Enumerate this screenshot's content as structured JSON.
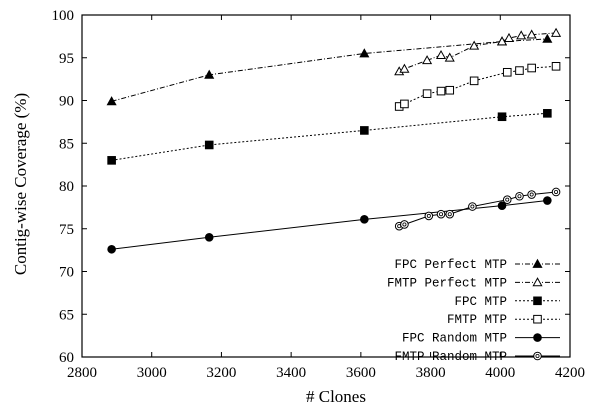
{
  "chart_data": {
    "type": "line",
    "title": "",
    "xlabel": "# Clones",
    "ylabel": "Contig-wise Coverage (%)",
    "xlim": [
      2800,
      4200
    ],
    "ylim": [
      60,
      100
    ],
    "xticks": [
      2800,
      3000,
      3200,
      3400,
      3600,
      3800,
      4000,
      4200
    ],
    "yticks": [
      60,
      65,
      70,
      75,
      80,
      85,
      90,
      95,
      100
    ],
    "grid": false,
    "legend_position": "bottom-right",
    "series": [
      {
        "name": "FPC Perfect MTP",
        "marker": "filled-triangle",
        "line": "dash-dot",
        "x": [
          2885,
          3165,
          3610,
          4005,
          4135
        ],
        "y": [
          89.9,
          93.0,
          95.5,
          96.9,
          97.2
        ]
      },
      {
        "name": "FMTP Perfect MTP",
        "marker": "open-triangle",
        "line": "dash-dot",
        "x": [
          3710,
          3725,
          3790,
          3830,
          3855,
          3925,
          4005,
          4025,
          4060,
          4090,
          4160
        ],
        "y": [
          93.4,
          93.7,
          94.7,
          95.3,
          95.0,
          96.4,
          96.9,
          97.3,
          97.6,
          97.7,
          97.9
        ]
      },
      {
        "name": "FPC MTP",
        "marker": "filled-square",
        "line": "dotted",
        "x": [
          2885,
          3165,
          3610,
          4005,
          4135
        ],
        "y": [
          83.0,
          84.8,
          86.5,
          88.1,
          88.5
        ]
      },
      {
        "name": "FMTP MTP",
        "marker": "open-square",
        "line": "dotted",
        "x": [
          3710,
          3725,
          3790,
          3830,
          3855,
          3925,
          4020,
          4055,
          4090,
          4160
        ],
        "y": [
          89.3,
          89.6,
          90.8,
          91.1,
          91.2,
          92.3,
          93.3,
          93.5,
          93.8,
          94.0
        ]
      },
      {
        "name": "FPC Random MTP",
        "marker": "filled-circle",
        "line": "solid",
        "x": [
          2885,
          3165,
          3610,
          4005,
          4135
        ],
        "y": [
          72.6,
          74.0,
          76.1,
          77.7,
          78.3
        ]
      },
      {
        "name": "FMTP Random MTP",
        "marker": "open-circle",
        "line": "solid",
        "x": [
          3710,
          3725,
          3795,
          3830,
          3855,
          3920,
          4020,
          4055,
          4090,
          4160
        ],
        "y": [
          75.3,
          75.5,
          76.5,
          76.7,
          76.7,
          77.6,
          78.4,
          78.8,
          79.0,
          79.3
        ]
      }
    ]
  }
}
